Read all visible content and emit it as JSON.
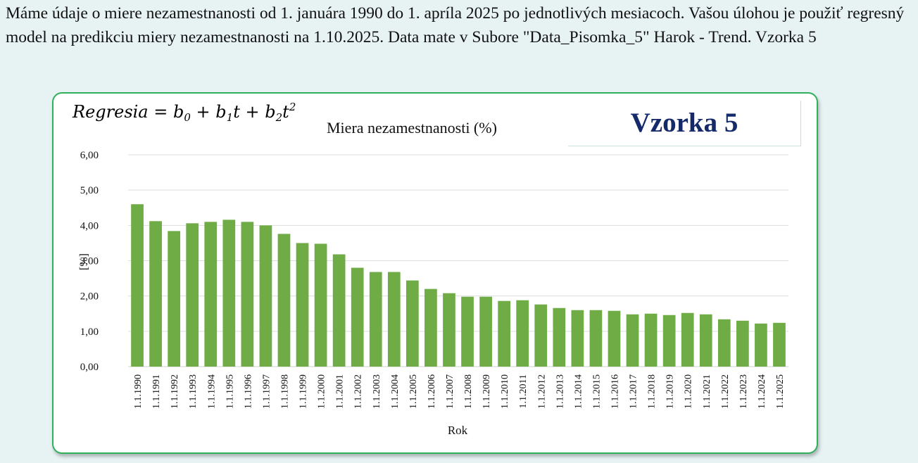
{
  "task": {
    "text": "Máme údaje o miere nezamestnanosti od 1. januára 1990 do 1. apríla 2025 po jednotlivých mesiacoch. Vašou úlohou je použiť regresný model na predikciu miery nezamestnanosti na 1.10.2025. Data mate v Subore \"Data_Pisomka_5\" Harok - Trend.  Vzorka 5"
  },
  "formula": {
    "lhs": "Regresia",
    "b0": "b",
    "b0_sub": "0",
    "b1": "b",
    "b1_sub": "1",
    "t1": "t",
    "b2": "b",
    "b2_sub": "2",
    "t2": "t",
    "t2_sup": "2"
  },
  "badge": {
    "text": "Vzorka 5"
  },
  "chart_data": {
    "type": "bar",
    "title": "Miera nezamestnanosti (%)",
    "xlabel": "Rok",
    "ylabel": "[%]",
    "ylim": [
      0,
      6
    ],
    "yticks": [
      "0,00",
      "1,00",
      "2,00",
      "3,00",
      "4,00",
      "5,00",
      "6,00"
    ],
    "grid": true,
    "bar_color": "#6fac46",
    "categories": [
      "1.1.1990",
      "1.1.1991",
      "1.1.1992",
      "1.1.1993",
      "1.1.1994",
      "1.1.1995",
      "1.1.1996",
      "1.1.1997",
      "1.1.1998",
      "1.1.1999",
      "1.1.2000",
      "1.1.2001",
      "1.1.2002",
      "1.1.2003",
      "1.1.2004",
      "1.1.2005",
      "1.1.2006",
      "1.1.2007",
      "1.1.2008",
      "1.1.2009",
      "1.1.2010",
      "1.1.2011",
      "1.1.2012",
      "1.1.2013",
      "1.1.2014",
      "1.1.2015",
      "1.1.2016",
      "1.1.2017",
      "1.1.2018",
      "1.1.2019",
      "1.1.2020",
      "1.1.2021",
      "1.1.2022",
      "1.1.2023",
      "1.1.2024",
      "1.1.2025"
    ],
    "values": [
      4.6,
      4.12,
      3.84,
      4.06,
      4.1,
      4.16,
      4.1,
      4.0,
      3.76,
      3.5,
      3.48,
      3.18,
      2.8,
      2.68,
      2.68,
      2.44,
      2.2,
      2.08,
      1.98,
      1.98,
      1.86,
      1.88,
      1.76,
      1.66,
      1.6,
      1.6,
      1.58,
      1.48,
      1.5,
      1.46,
      1.52,
      1.48,
      1.34,
      1.3,
      1.22,
      1.24
    ]
  }
}
